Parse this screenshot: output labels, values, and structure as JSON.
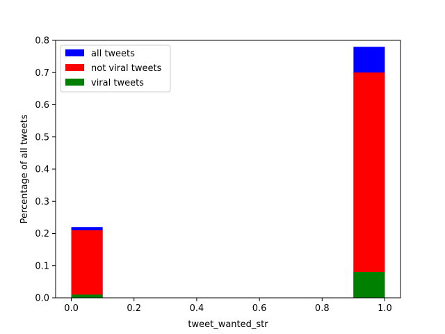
{
  "chart_data": {
    "type": "bar",
    "title": "",
    "xlabel": "tweet_wanted_str",
    "ylabel": "Percentage of all tweets",
    "xlim": [
      -0.05,
      1.05
    ],
    "ylim": [
      0,
      0.8
    ],
    "x_ticks": [
      "0.0",
      "0.2",
      "0.4",
      "0.6",
      "0.8",
      "1.0"
    ],
    "y_ticks": [
      "0.0",
      "0.1",
      "0.2",
      "0.3",
      "0.4",
      "0.5",
      "0.6",
      "0.7",
      "0.8"
    ],
    "bins": [
      [
        0.0,
        0.1
      ],
      [
        0.9,
        1.0
      ]
    ],
    "series": [
      {
        "name": "all tweets",
        "color": "#0000ff",
        "values": [
          0.22,
          0.78
        ]
      },
      {
        "name": "not viral tweets",
        "color": "#ff0000",
        "values": [
          0.21,
          0.7
        ]
      },
      {
        "name": "viral tweets",
        "color": "#008000",
        "values": [
          0.01,
          0.08
        ]
      }
    ],
    "legend_position": "top-left",
    "grid": false
  }
}
